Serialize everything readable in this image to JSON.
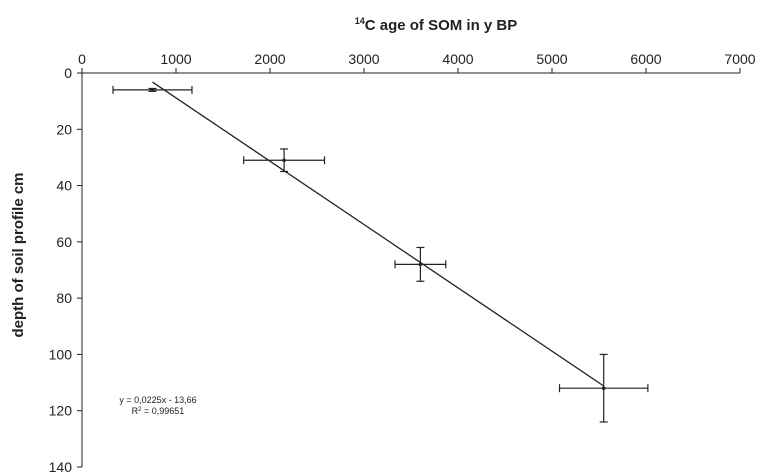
{
  "chart_data": {
    "type": "scatter",
    "title": "",
    "xlabel_sup": "14",
    "xlabel_main": "C age of SOM in y BP",
    "ylabel": "depth of soil profile cm",
    "xlim": [
      0,
      7000
    ],
    "ylim": [
      0,
      140
    ],
    "y_inverted": true,
    "x_axis_position": "top",
    "grid": false,
    "x_ticks": [
      0,
      1000,
      2000,
      3000,
      4000,
      5000,
      6000,
      7000
    ],
    "y_ticks": [
      0,
      20,
      40,
      60,
      80,
      100,
      120,
      140
    ],
    "points": [
      {
        "x": 750,
        "y": 6,
        "x_err": 420,
        "y_err": 0.5
      },
      {
        "x": 2150,
        "y": 31,
        "x_err": 430,
        "y_err": 4
      },
      {
        "x": 3600,
        "y": 68,
        "x_err": 270,
        "y_err": 6
      },
      {
        "x": 5550,
        "y": 112,
        "x_err": 470,
        "y_err": 12
      }
    ],
    "trendline": {
      "x_start": 750,
      "x_end": 5550,
      "slope": 0.0225,
      "intercept": -13.66
    },
    "annotations": {
      "equation": "y = 0,0225x - 13,66",
      "r2_prefix": "R",
      "r2_sup": "2",
      "r2_value": " = 0,99651"
    },
    "colors": {
      "line": "#222222",
      "text": "#222222"
    }
  }
}
